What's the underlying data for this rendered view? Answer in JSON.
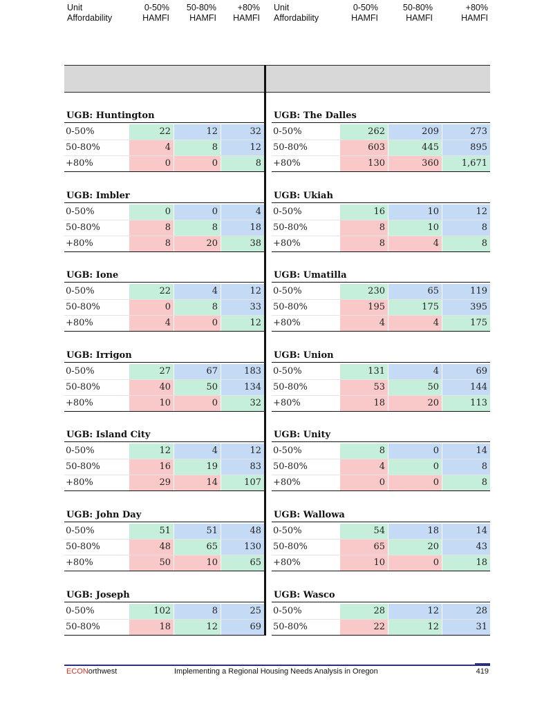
{
  "header": {
    "left": {
      "col1": [
        "Unit",
        "Affordability"
      ],
      "col2": [
        "0-50%",
        "HAMFI"
      ],
      "col3": [
        "50-80%",
        "HAMFI"
      ],
      "col4": [
        "+80%",
        "HAMFI"
      ]
    },
    "right": {
      "col1": [
        "Unit",
        "Affordability"
      ],
      "col2": [
        "0-50%",
        "HAMFI"
      ],
      "col3": [
        "50-80%",
        "HAMFI"
      ],
      "col4": [
        "+80%",
        "HAMFI"
      ]
    }
  },
  "colors": {
    "green": "#c6efdb",
    "red": "#f9c9c9",
    "blue": "#c5dbf5"
  },
  "left_sections": [
    {
      "title": "UGB: Huntington",
      "rows": [
        {
          "label": "0-50%",
          "values": [
            "22",
            "12",
            "32"
          ],
          "colors": [
            "green",
            "blue",
            "blue"
          ]
        },
        {
          "label": "50-80%",
          "values": [
            "4",
            "8",
            "12"
          ],
          "colors": [
            "red",
            "green",
            "blue"
          ]
        },
        {
          "label": "+80%",
          "values": [
            "0",
            "0",
            "8"
          ],
          "colors": [
            "red",
            "red",
            "green"
          ]
        }
      ]
    },
    {
      "title": "UGB: Imbler",
      "rows": [
        {
          "label": "0-50%",
          "values": [
            "0",
            "0",
            "4"
          ],
          "colors": [
            "green",
            "blue",
            "blue"
          ]
        },
        {
          "label": "50-80%",
          "values": [
            "8",
            "8",
            "18"
          ],
          "colors": [
            "red",
            "green",
            "blue"
          ]
        },
        {
          "label": "+80%",
          "values": [
            "8",
            "20",
            "38"
          ],
          "colors": [
            "red",
            "red",
            "green"
          ]
        }
      ]
    },
    {
      "title": "UGB: Ione",
      "rows": [
        {
          "label": "0-50%",
          "values": [
            "22",
            "4",
            "12"
          ],
          "colors": [
            "green",
            "blue",
            "blue"
          ]
        },
        {
          "label": "50-80%",
          "values": [
            "0",
            "8",
            "33"
          ],
          "colors": [
            "red",
            "green",
            "blue"
          ]
        },
        {
          "label": "+80%",
          "values": [
            "4",
            "0",
            "12"
          ],
          "colors": [
            "red",
            "red",
            "green"
          ]
        }
      ]
    },
    {
      "title": "UGB: Irrigon",
      "rows": [
        {
          "label": "0-50%",
          "values": [
            "27",
            "67",
            "183"
          ],
          "colors": [
            "green",
            "blue",
            "blue"
          ]
        },
        {
          "label": "50-80%",
          "values": [
            "40",
            "50",
            "134"
          ],
          "colors": [
            "red",
            "green",
            "blue"
          ]
        },
        {
          "label": "+80%",
          "values": [
            "10",
            "0",
            "32"
          ],
          "colors": [
            "red",
            "red",
            "green"
          ]
        }
      ]
    },
    {
      "title": "UGB: Island City",
      "rows": [
        {
          "label": "0-50%",
          "values": [
            "12",
            "4",
            "12"
          ],
          "colors": [
            "green",
            "blue",
            "blue"
          ]
        },
        {
          "label": "50-80%",
          "values": [
            "16",
            "19",
            "83"
          ],
          "colors": [
            "red",
            "green",
            "blue"
          ]
        },
        {
          "label": "+80%",
          "values": [
            "29",
            "14",
            "107"
          ],
          "colors": [
            "red",
            "red",
            "green"
          ]
        }
      ]
    },
    {
      "title": "UGB: John Day",
      "rows": [
        {
          "label": "0-50%",
          "values": [
            "51",
            "51",
            "48"
          ],
          "colors": [
            "green",
            "blue",
            "blue"
          ]
        },
        {
          "label": "50-80%",
          "values": [
            "48",
            "65",
            "130"
          ],
          "colors": [
            "red",
            "green",
            "blue"
          ]
        },
        {
          "label": "+80%",
          "values": [
            "50",
            "10",
            "65"
          ],
          "colors": [
            "red",
            "red",
            "green"
          ]
        }
      ]
    },
    {
      "title": "UGB: Joseph",
      "rows": [
        {
          "label": "0-50%",
          "values": [
            "102",
            "8",
            "25"
          ],
          "colors": [
            "green",
            "blue",
            "blue"
          ]
        },
        {
          "label": "50-80%",
          "values": [
            "18",
            "12",
            "69"
          ],
          "colors": [
            "red",
            "green",
            "blue"
          ]
        }
      ]
    }
  ],
  "right_sections": [
    {
      "title": "UGB: The Dalles",
      "rows": [
        {
          "label": "0-50%",
          "values": [
            "262",
            "209",
            "273"
          ],
          "colors": [
            "green",
            "blue",
            "blue"
          ]
        },
        {
          "label": "50-80%",
          "values": [
            "603",
            "445",
            "895"
          ],
          "colors": [
            "red",
            "green",
            "blue"
          ]
        },
        {
          "label": "+80%",
          "values": [
            "130",
            "360",
            "1,671"
          ],
          "colors": [
            "red",
            "red",
            "green"
          ]
        }
      ]
    },
    {
      "title": "UGB: Ukiah",
      "rows": [
        {
          "label": "0-50%",
          "values": [
            "16",
            "10",
            "12"
          ],
          "colors": [
            "green",
            "blue",
            "blue"
          ]
        },
        {
          "label": "50-80%",
          "values": [
            "8",
            "10",
            "8"
          ],
          "colors": [
            "red",
            "green",
            "blue"
          ]
        },
        {
          "label": "+80%",
          "values": [
            "8",
            "4",
            "8"
          ],
          "colors": [
            "red",
            "red",
            "green"
          ]
        }
      ]
    },
    {
      "title": "UGB: Umatilla",
      "rows": [
        {
          "label": "0-50%",
          "values": [
            "230",
            "65",
            "119"
          ],
          "colors": [
            "green",
            "blue",
            "blue"
          ]
        },
        {
          "label": "50-80%",
          "values": [
            "195",
            "175",
            "395"
          ],
          "colors": [
            "red",
            "green",
            "blue"
          ]
        },
        {
          "label": "+80%",
          "values": [
            "4",
            "4",
            "175"
          ],
          "colors": [
            "red",
            "red",
            "green"
          ]
        }
      ]
    },
    {
      "title": "UGB: Union",
      "rows": [
        {
          "label": "0-50%",
          "values": [
            "131",
            "4",
            "69"
          ],
          "colors": [
            "green",
            "blue",
            "blue"
          ]
        },
        {
          "label": "50-80%",
          "values": [
            "53",
            "50",
            "144"
          ],
          "colors": [
            "red",
            "green",
            "blue"
          ]
        },
        {
          "label": "+80%",
          "values": [
            "18",
            "20",
            "113"
          ],
          "colors": [
            "red",
            "red",
            "green"
          ]
        }
      ]
    },
    {
      "title": "UGB: Unity",
      "rows": [
        {
          "label": "0-50%",
          "values": [
            "8",
            "0",
            "14"
          ],
          "colors": [
            "green",
            "blue",
            "blue"
          ]
        },
        {
          "label": "50-80%",
          "values": [
            "4",
            "0",
            "8"
          ],
          "colors": [
            "red",
            "green",
            "blue"
          ]
        },
        {
          "label": "+80%",
          "values": [
            "0",
            "0",
            "8"
          ],
          "colors": [
            "red",
            "red",
            "green"
          ]
        }
      ]
    },
    {
      "title": "UGB: Wallowa",
      "rows": [
        {
          "label": "0-50%",
          "values": [
            "54",
            "18",
            "14"
          ],
          "colors": [
            "green",
            "blue",
            "blue"
          ]
        },
        {
          "label": "50-80%",
          "values": [
            "65",
            "20",
            "43"
          ],
          "colors": [
            "red",
            "green",
            "blue"
          ]
        },
        {
          "label": "+80%",
          "values": [
            "10",
            "0",
            "18"
          ],
          "colors": [
            "red",
            "red",
            "green"
          ]
        }
      ]
    },
    {
      "title": "UGB: Wasco",
      "rows": [
        {
          "label": "0-50%",
          "values": [
            "28",
            "12",
            "28"
          ],
          "colors": [
            "green",
            "blue",
            "blue"
          ]
        },
        {
          "label": "50-80%",
          "values": [
            "22",
            "12",
            "31"
          ],
          "colors": [
            "red",
            "green",
            "blue"
          ]
        }
      ]
    }
  ],
  "footer": {
    "brand_accent": "ECON",
    "brand_rest": "orthwest",
    "title": "Implementing a Regional Housing Needs Analysis in Oregon",
    "page_number": "419"
  }
}
